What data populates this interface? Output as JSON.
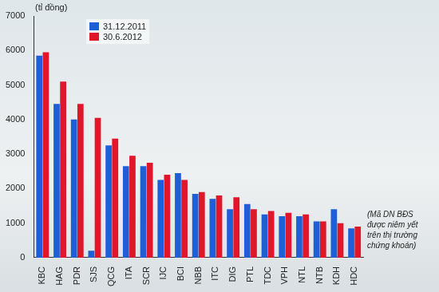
{
  "chart_data": {
    "type": "bar",
    "y_unit_label": "(tỉ đồng)",
    "annotation": [
      "(Mã DN BĐS",
      "được niêm yết",
      "trên thị trường",
      "chứng khoán)"
    ],
    "categories": [
      "KBC",
      "HAG",
      "PDR",
      "SJS",
      "QCG",
      "ITA",
      "SCR",
      "IJC",
      "BCI",
      "NBB",
      "ITC",
      "DIG",
      "PTL",
      "TDC",
      "VPH",
      "NTL",
      "NTB",
      "KDH",
      "HDC"
    ],
    "series": [
      {
        "name": "31.12.2011",
        "color": "#1f5fd6",
        "values": [
          5850,
          4450,
          4000,
          200,
          3250,
          2650,
          2650,
          2250,
          2450,
          1850,
          1700,
          1400,
          1550,
          1250,
          1200,
          1200,
          1050,
          1400,
          850
        ]
      },
      {
        "name": "30.6.2012",
        "color": "#e0162b",
        "values": [
          5950,
          5100,
          4450,
          4050,
          3450,
          2950,
          2750,
          2400,
          2250,
          1900,
          1800,
          1750,
          1400,
          1350,
          1300,
          1250,
          1050,
          1000,
          900
        ]
      }
    ],
    "ylim": [
      0,
      7000
    ],
    "yticks": [
      0,
      1000,
      2000,
      3000,
      4000,
      5000,
      6000,
      7000
    ],
    "grid": false,
    "legend": "upper left"
  }
}
